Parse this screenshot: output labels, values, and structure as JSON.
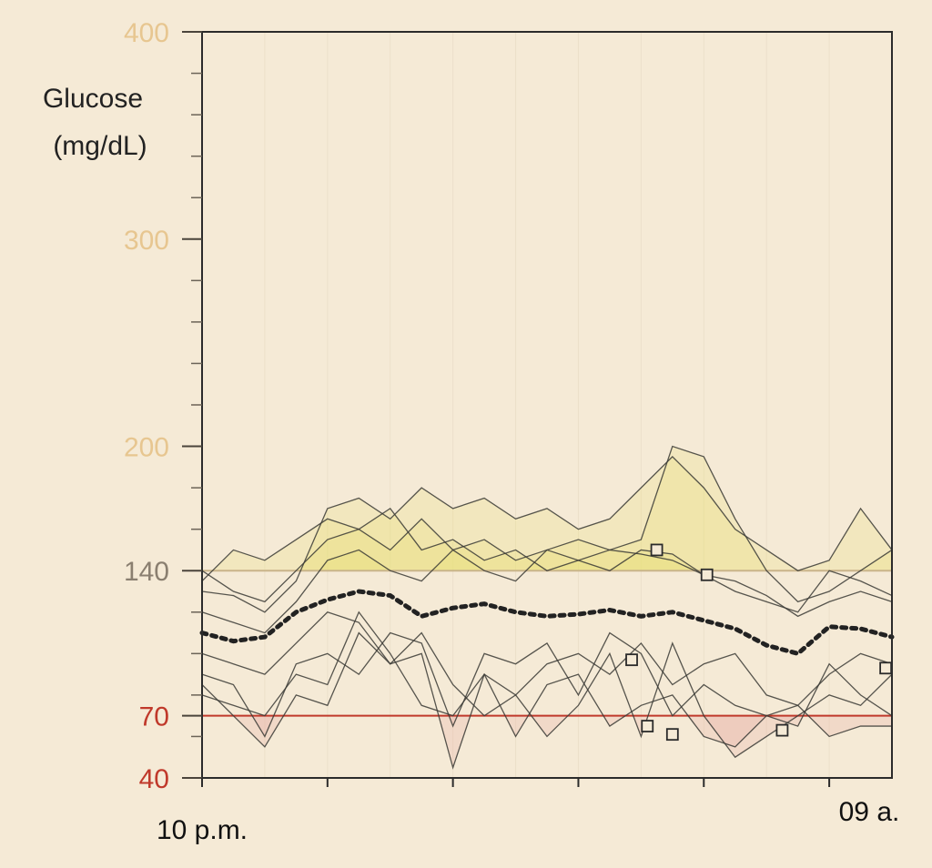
{
  "chart_data": {
    "type": "line",
    "title": "",
    "ylabel_line1": "Glucose",
    "ylabel_line2": "(mg/dL)",
    "xlabel": "",
    "x_start_label": "10 p.m.",
    "x_end_label": "09 a.",
    "x_range_hours": [
      0,
      11
    ],
    "ylim": [
      40,
      400
    ],
    "y_ticks": [
      {
        "value": 400,
        "label": "400",
        "color": "#e7c690"
      },
      {
        "value": 300,
        "label": "300",
        "color": "#e7c690"
      },
      {
        "value": 200,
        "label": "200",
        "color": "#e7c690"
      },
      {
        "value": 140,
        "label": "140",
        "color": "#8a7f70"
      },
      {
        "value": 70,
        "label": "70",
        "color": "#c0392b"
      },
      {
        "value": 40,
        "label": "40",
        "color": "#c0392b"
      }
    ],
    "target_high": 140,
    "target_low": 70,
    "colors": {
      "high_line": "#c9b48a",
      "low_line": "#c0392b",
      "high_fill": "#e6e06a",
      "low_fill": "#e9a8a0",
      "trace": "#3a3a35",
      "median": "#222222"
    },
    "median": {
      "x": [
        0,
        0.5,
        1.0,
        1.5,
        2.0,
        2.5,
        3.0,
        3.5,
        4.0,
        4.5,
        5.0,
        5.5,
        6.0,
        6.5,
        7.0,
        7.5,
        8.0,
        8.5,
        9.0,
        9.5,
        10.0,
        10.5,
        11.0
      ],
      "y": [
        110,
        106,
        108,
        120,
        126,
        130,
        128,
        118,
        122,
        124,
        120,
        118,
        119,
        121,
        118,
        120,
        116,
        112,
        104,
        100,
        113,
        112,
        108
      ]
    },
    "series": [
      {
        "x": [
          0,
          0.5,
          1.0,
          1.5,
          2.0,
          2.5,
          3.0,
          3.5,
          4.0,
          4.5,
          5.0,
          5.5,
          6.0,
          6.5,
          7.0,
          7.5,
          8.0,
          8.5,
          9.0,
          9.5,
          10.0,
          10.5,
          11.0
        ],
        "y": [
          135,
          150,
          145,
          155,
          165,
          160,
          170,
          150,
          155,
          145,
          150,
          140,
          145,
          150,
          155,
          200,
          195,
          165,
          140,
          125,
          130,
          140,
          150
        ]
      },
      {
        "x": [
          0,
          0.5,
          1.0,
          1.5,
          2.0,
          2.5,
          3.0,
          3.5,
          4.0,
          4.5,
          5.0,
          5.5,
          6.0,
          6.5,
          7.0,
          7.5,
          8.0,
          8.5,
          9.0,
          9.5,
          10.0,
          10.5,
          11.0
        ],
        "y": [
          130,
          128,
          120,
          135,
          170,
          175,
          165,
          180,
          170,
          175,
          165,
          170,
          160,
          165,
          180,
          195,
          180,
          160,
          150,
          140,
          145,
          170,
          150
        ]
      },
      {
        "x": [
          0,
          0.5,
          1.0,
          1.5,
          2.0,
          2.5,
          3.0,
          3.5,
          4.0,
          4.5,
          5.0,
          5.5,
          6.0,
          6.5,
          7.0,
          7.5,
          8.0,
          8.5,
          9.0,
          9.5,
          10.0,
          10.5,
          11.0
        ],
        "y": [
          120,
          115,
          110,
          125,
          145,
          150,
          140,
          135,
          150,
          155,
          145,
          150,
          155,
          150,
          148,
          145,
          138,
          130,
          125,
          120,
          140,
          135,
          128
        ]
      },
      {
        "x": [
          0,
          0.5,
          1.0,
          1.5,
          2.0,
          2.5,
          3.0,
          3.5,
          4.0,
          4.5,
          5.0,
          5.5,
          6.0,
          6.5,
          7.0,
          7.5,
          8.0,
          8.5,
          9.0,
          9.5,
          10.0,
          10.5,
          11.0
        ],
        "y": [
          90,
          85,
          60,
          95,
          100,
          90,
          110,
          105,
          65,
          100,
          95,
          105,
          80,
          110,
          100,
          70,
          85,
          75,
          70,
          65,
          95,
          80,
          70
        ]
      },
      {
        "x": [
          0,
          0.5,
          1.0,
          1.5,
          2.0,
          2.5,
          3.0,
          3.5,
          4.0,
          4.5,
          5.0,
          5.5,
          6.0,
          6.5,
          7.0,
          7.5,
          8.0,
          8.5,
          9.0,
          9.5,
          10.0,
          10.5,
          11.0
        ],
        "y": [
          85,
          70,
          55,
          80,
          75,
          110,
          95,
          100,
          45,
          90,
          80,
          60,
          75,
          100,
          60,
          105,
          70,
          50,
          60,
          70,
          80,
          75,
          90
        ]
      },
      {
        "x": [
          0,
          0.5,
          1.0,
          1.5,
          2.0,
          2.5,
          3.0,
          3.5,
          4.0,
          4.5,
          5.0,
          5.5,
          6.0,
          6.5,
          7.0,
          7.5,
          8.0,
          8.5,
          9.0,
          9.5,
          10.0,
          10.5,
          11.0
        ],
        "y": [
          100,
          95,
          90,
          105,
          120,
          115,
          95,
          110,
          85,
          70,
          80,
          95,
          100,
          90,
          105,
          85,
          95,
          100,
          80,
          75,
          90,
          100,
          95
        ]
      },
      {
        "x": [
          0,
          0.5,
          1.0,
          1.5,
          2.0,
          2.5,
          3.0,
          3.5,
          4.0,
          4.5,
          5.0,
          5.5,
          6.0,
          6.5,
          7.0,
          7.5,
          8.0,
          8.5,
          9.0,
          9.5,
          10.0,
          10.5,
          11.0
        ],
        "y": [
          140,
          130,
          125,
          140,
          155,
          160,
          150,
          165,
          150,
          140,
          135,
          150,
          145,
          140,
          150,
          148,
          138,
          135,
          128,
          118,
          125,
          130,
          125
        ]
      },
      {
        "x": [
          0,
          0.5,
          1.0,
          1.5,
          2.0,
          2.5,
          3.0,
          3.5,
          4.0,
          4.5,
          5.0,
          5.5,
          6.0,
          6.5,
          7.0,
          7.5,
          8.0,
          8.5,
          9.0,
          9.5,
          10.0,
          10.5,
          11.0
        ],
        "y": [
          80,
          75,
          70,
          90,
          85,
          120,
          100,
          75,
          70,
          90,
          60,
          85,
          90,
          65,
          75,
          80,
          60,
          55,
          70,
          75,
          60,
          65,
          65
        ]
      }
    ],
    "markers": [
      {
        "x": 7.25,
        "y": 150
      },
      {
        "x": 8.05,
        "y": 138
      },
      {
        "x": 6.85,
        "y": 97
      },
      {
        "x": 7.1,
        "y": 65
      },
      {
        "x": 7.5,
        "y": 61
      },
      {
        "x": 9.25,
        "y": 63
      },
      {
        "x": 10.9,
        "y": 93
      }
    ]
  }
}
